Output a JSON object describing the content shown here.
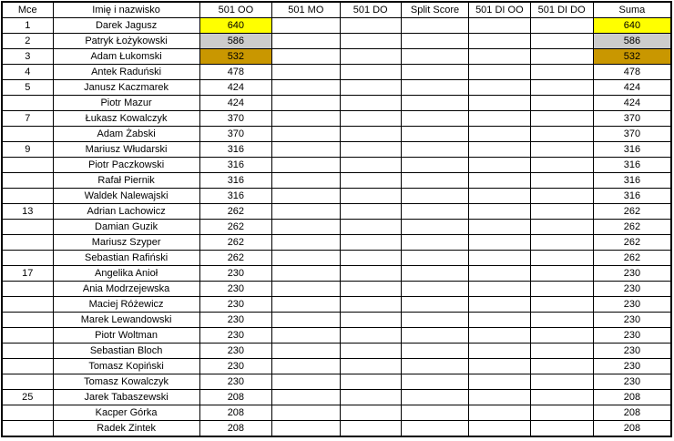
{
  "table": {
    "columns": [
      "Mce",
      "Imię i nazwisko",
      "501 OO",
      "501 MO",
      "501 DO",
      "Split Score",
      "501 DI OO",
      "501 DI DO",
      "Suma"
    ],
    "highlight_colors": {
      "gold": "#FFFF00",
      "silver": "#CCCCCC",
      "bronze": "#C99700"
    },
    "rows": [
      {
        "place": "1",
        "name": "Darek Jagusz",
        "oo": "640",
        "mo": "",
        "do": "",
        "split": "",
        "dioo": "",
        "dido": "",
        "suma": "640",
        "highlight": "gold"
      },
      {
        "place": "2",
        "name": "Patryk Łożykowski",
        "oo": "586",
        "mo": "",
        "do": "",
        "split": "",
        "dioo": "",
        "dido": "",
        "suma": "586",
        "highlight": "silver"
      },
      {
        "place": "3",
        "name": "Adam Łukomski",
        "oo": "532",
        "mo": "",
        "do": "",
        "split": "",
        "dioo": "",
        "dido": "",
        "suma": "532",
        "highlight": "bronze"
      },
      {
        "place": "4",
        "name": "Antek Raduński",
        "oo": "478",
        "mo": "",
        "do": "",
        "split": "",
        "dioo": "",
        "dido": "",
        "suma": "478",
        "highlight": ""
      },
      {
        "place": "5",
        "name": "Janusz Kaczmarek",
        "oo": "424",
        "mo": "",
        "do": "",
        "split": "",
        "dioo": "",
        "dido": "",
        "suma": "424",
        "highlight": ""
      },
      {
        "place": "",
        "name": "Piotr Mazur",
        "oo": "424",
        "mo": "",
        "do": "",
        "split": "",
        "dioo": "",
        "dido": "",
        "suma": "424",
        "highlight": ""
      },
      {
        "place": "7",
        "name": "Łukasz Kowalczyk",
        "oo": "370",
        "mo": "",
        "do": "",
        "split": "",
        "dioo": "",
        "dido": "",
        "suma": "370",
        "highlight": ""
      },
      {
        "place": "",
        "name": "Adam Żabski",
        "oo": "370",
        "mo": "",
        "do": "",
        "split": "",
        "dioo": "",
        "dido": "",
        "suma": "370",
        "highlight": ""
      },
      {
        "place": "9",
        "name": "Mariusz Włudarski",
        "oo": "316",
        "mo": "",
        "do": "",
        "split": "",
        "dioo": "",
        "dido": "",
        "suma": "316",
        "highlight": ""
      },
      {
        "place": "",
        "name": "Piotr Paczkowski",
        "oo": "316",
        "mo": "",
        "do": "",
        "split": "",
        "dioo": "",
        "dido": "",
        "suma": "316",
        "highlight": ""
      },
      {
        "place": "",
        "name": "Rafał Piernik",
        "oo": "316",
        "mo": "",
        "do": "",
        "split": "",
        "dioo": "",
        "dido": "",
        "suma": "316",
        "highlight": ""
      },
      {
        "place": "",
        "name": "Waldek Nalewajski",
        "oo": "316",
        "mo": "",
        "do": "",
        "split": "",
        "dioo": "",
        "dido": "",
        "suma": "316",
        "highlight": ""
      },
      {
        "place": "13",
        "name": "Adrian Lachowicz",
        "oo": "262",
        "mo": "",
        "do": "",
        "split": "",
        "dioo": "",
        "dido": "",
        "suma": "262",
        "highlight": ""
      },
      {
        "place": "",
        "name": "Damian Guzik",
        "oo": "262",
        "mo": "",
        "do": "",
        "split": "",
        "dioo": "",
        "dido": "",
        "suma": "262",
        "highlight": ""
      },
      {
        "place": "",
        "name": "Mariusz Szyper",
        "oo": "262",
        "mo": "",
        "do": "",
        "split": "",
        "dioo": "",
        "dido": "",
        "suma": "262",
        "highlight": ""
      },
      {
        "place": "",
        "name": "Sebastian Rafiński",
        "oo": "262",
        "mo": "",
        "do": "",
        "split": "",
        "dioo": "",
        "dido": "",
        "suma": "262",
        "highlight": ""
      },
      {
        "place": "17",
        "name": "Angelika Anioł",
        "oo": "230",
        "mo": "",
        "do": "",
        "split": "",
        "dioo": "",
        "dido": "",
        "suma": "230",
        "highlight": ""
      },
      {
        "place": "",
        "name": "Ania Modrzejewska",
        "oo": "230",
        "mo": "",
        "do": "",
        "split": "",
        "dioo": "",
        "dido": "",
        "suma": "230",
        "highlight": ""
      },
      {
        "place": "",
        "name": "Maciej Różewicz",
        "oo": "230",
        "mo": "",
        "do": "",
        "split": "",
        "dioo": "",
        "dido": "",
        "suma": "230",
        "highlight": ""
      },
      {
        "place": "",
        "name": "Marek Lewandowski",
        "oo": "230",
        "mo": "",
        "do": "",
        "split": "",
        "dioo": "",
        "dido": "",
        "suma": "230",
        "highlight": ""
      },
      {
        "place": "",
        "name": "Piotr Woltman",
        "oo": "230",
        "mo": "",
        "do": "",
        "split": "",
        "dioo": "",
        "dido": "",
        "suma": "230",
        "highlight": ""
      },
      {
        "place": "",
        "name": "Sebastian Bloch",
        "oo": "230",
        "mo": "",
        "do": "",
        "split": "",
        "dioo": "",
        "dido": "",
        "suma": "230",
        "highlight": ""
      },
      {
        "place": "",
        "name": "Tomasz Kopiński",
        "oo": "230",
        "mo": "",
        "do": "",
        "split": "",
        "dioo": "",
        "dido": "",
        "suma": "230",
        "highlight": ""
      },
      {
        "place": "",
        "name": "Tomasz Kowalczyk",
        "oo": "230",
        "mo": "",
        "do": "",
        "split": "",
        "dioo": "",
        "dido": "",
        "suma": "230",
        "highlight": ""
      },
      {
        "place": "25",
        "name": "Jarek Tabaszewski",
        "oo": "208",
        "mo": "",
        "do": "",
        "split": "",
        "dioo": "",
        "dido": "",
        "suma": "208",
        "highlight": ""
      },
      {
        "place": "",
        "name": "Kacper Górka",
        "oo": "208",
        "mo": "",
        "do": "",
        "split": "",
        "dioo": "",
        "dido": "",
        "suma": "208",
        "highlight": ""
      },
      {
        "place": "",
        "name": "Radek Zintek",
        "oo": "208",
        "mo": "",
        "do": "",
        "split": "",
        "dioo": "",
        "dido": "",
        "suma": "208",
        "highlight": ""
      }
    ]
  }
}
